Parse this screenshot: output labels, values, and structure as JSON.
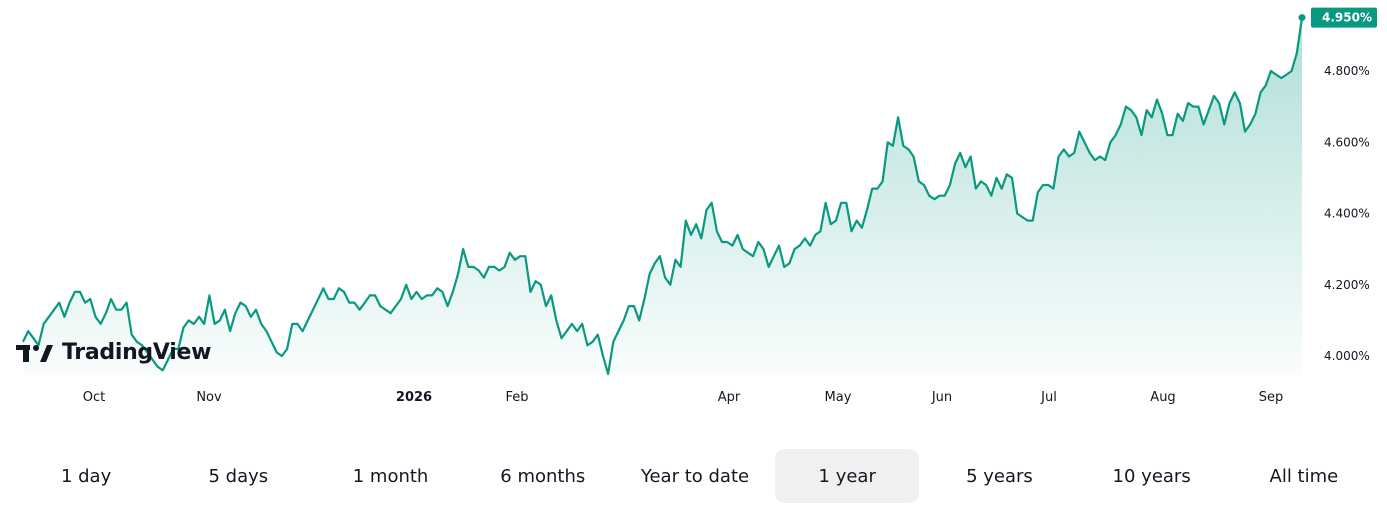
{
  "chart_data": {
    "type": "area",
    "x_ticks": [
      "Oct",
      "Nov",
      "2026",
      "Feb",
      "Apr",
      "May",
      "Jun",
      "Jul",
      "Aug",
      "Sep"
    ],
    "y_ticks": [
      "4.000%",
      "4.200%",
      "4.400%",
      "4.600%",
      "4.800%"
    ],
    "ylim": [
      3.95,
      5.0
    ],
    "last_value_label": "4.950%",
    "last_value": 4.95,
    "line_color": "#089981",
    "fill_color": "#089981",
    "values": [
      4.04,
      4.07,
      4.05,
      4.03,
      4.09,
      4.11,
      4.13,
      4.15,
      4.11,
      4.15,
      4.18,
      4.18,
      4.15,
      4.16,
      4.11,
      4.09,
      4.12,
      4.16,
      4.13,
      4.13,
      4.15,
      4.06,
      4.04,
      4.03,
      4.01,
      3.99,
      3.97,
      3.96,
      3.99,
      4.02,
      4.02,
      4.08,
      4.1,
      4.09,
      4.11,
      4.09,
      4.17,
      4.09,
      4.1,
      4.13,
      4.07,
      4.12,
      4.15,
      4.14,
      4.11,
      4.13,
      4.09,
      4.07,
      4.04,
      4.01,
      4.0,
      4.02,
      4.09,
      4.09,
      4.07,
      4.1,
      4.13,
      4.16,
      4.19,
      4.16,
      4.16,
      4.19,
      4.18,
      4.15,
      4.15,
      4.13,
      4.15,
      4.17,
      4.17,
      4.14,
      4.13,
      4.12,
      4.14,
      4.16,
      4.2,
      4.16,
      4.18,
      4.16,
      4.17,
      4.17,
      4.19,
      4.18,
      4.14,
      4.18,
      4.23,
      4.3,
      4.25,
      4.25,
      4.24,
      4.22,
      4.25,
      4.25,
      4.24,
      4.25,
      4.29,
      4.27,
      4.28,
      4.28,
      4.18,
      4.21,
      4.2,
      4.14,
      4.17,
      4.1,
      4.05,
      4.07,
      4.09,
      4.07,
      4.09,
      4.03,
      4.04,
      4.06,
      4.0,
      3.95,
      4.04,
      4.07,
      4.1,
      4.14,
      4.14,
      4.1,
      4.16,
      4.23,
      4.26,
      4.28,
      4.22,
      4.2,
      4.27,
      4.25,
      4.38,
      4.34,
      4.37,
      4.33,
      4.41,
      4.43,
      4.35,
      4.32,
      4.32,
      4.31,
      4.34,
      4.3,
      4.29,
      4.28,
      4.32,
      4.3,
      4.25,
      4.28,
      4.31,
      4.25,
      4.26,
      4.3,
      4.31,
      4.33,
      4.31,
      4.34,
      4.35,
      4.43,
      4.37,
      4.38,
      4.43,
      4.43,
      4.35,
      4.38,
      4.36,
      4.41,
      4.47,
      4.47,
      4.49,
      4.6,
      4.59,
      4.67,
      4.59,
      4.58,
      4.56,
      4.49,
      4.48,
      4.45,
      4.44,
      4.45,
      4.45,
      4.48,
      4.54,
      4.57,
      4.53,
      4.56,
      4.47,
      4.49,
      4.48,
      4.45,
      4.5,
      4.47,
      4.51,
      4.5,
      4.4,
      4.39,
      4.38,
      4.38,
      4.46,
      4.48,
      4.48,
      4.47,
      4.56,
      4.58,
      4.56,
      4.57,
      4.63,
      4.6,
      4.57,
      4.55,
      4.56,
      4.55,
      4.6,
      4.62,
      4.65,
      4.7,
      4.69,
      4.67,
      4.62,
      4.69,
      4.67,
      4.72,
      4.68,
      4.62,
      4.62,
      4.68,
      4.66,
      4.71,
      4.7,
      4.7,
      4.65,
      4.69,
      4.73,
      4.71,
      4.65,
      4.71,
      4.74,
      4.71,
      4.63,
      4.65,
      4.68,
      4.74,
      4.76,
      4.8,
      4.79,
      4.78,
      4.79,
      4.8,
      4.85,
      4.95
    ]
  },
  "logo": {
    "text": "TradingView"
  },
  "range_buttons": [
    {
      "label": "1 day"
    },
    {
      "label": "5 days"
    },
    {
      "label": "1 month"
    },
    {
      "label": "6 months"
    },
    {
      "label": "Year to date"
    },
    {
      "label": "1 year",
      "active": true
    },
    {
      "label": "5 years"
    },
    {
      "label": "10 years"
    },
    {
      "label": "All time"
    }
  ]
}
